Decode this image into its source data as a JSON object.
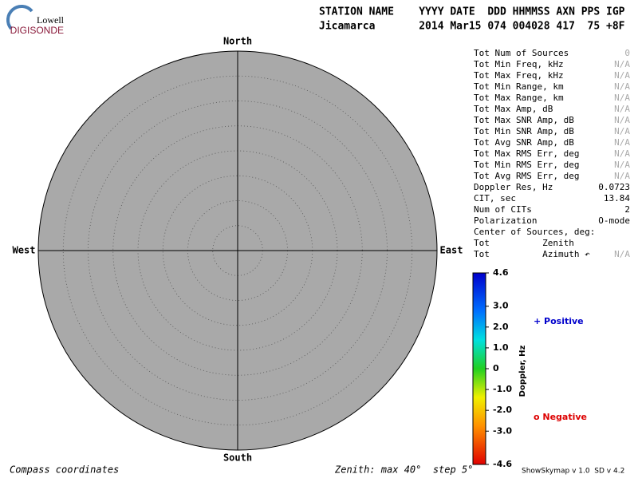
{
  "logo": {
    "top": "Lowell",
    "bottom": "DIGISONDE"
  },
  "header": {
    "line1": "STATION NAME    YYYY DATE  DDD HHMMSS AXN PPS IGP",
    "line2": "Jicamarca       2014 Mar15 074 004028 417  75 +8F"
  },
  "compass": {
    "north": "North",
    "south": "South",
    "west": "West",
    "east": "East"
  },
  "table": {
    "rows": [
      [
        "Tot Num of Sources",
        "0"
      ],
      [
        "Tot Min Freq, kHz",
        "N/A"
      ],
      [
        "Tot Max Freq, kHz",
        "N/A"
      ],
      [
        "Tot Min Range, km",
        "N/A"
      ],
      [
        "Tot Max Range, km",
        "N/A"
      ],
      [
        "Tot Max Amp, dB",
        "N/A"
      ],
      [
        "Tot Max SNR Amp, dB",
        "N/A"
      ],
      [
        "Tot Min SNR Amp, dB",
        "N/A"
      ],
      [
        "Tot Avg SNR Amp, dB",
        "N/A"
      ],
      [
        "Tot Max RMS Err, deg",
        "N/A"
      ],
      [
        "Tot Min RMS Err, deg",
        "N/A"
      ],
      [
        "Tot Avg RMS Err, deg",
        "N/A"
      ],
      [
        "Doppler Res, Hz",
        "0.0723"
      ],
      [
        "CIT, sec",
        "13.84"
      ],
      [
        "Num of CITs",
        "2"
      ],
      [
        "Polarization",
        "O-mode"
      ],
      [
        "Center of Sources, deg:"
      ],
      [
        "Tot          Zenith"
      ],
      [
        "Tot          Azimuth ↶",
        "N/A"
      ]
    ]
  },
  "colorbar": {
    "label": "Doppler, Hz",
    "ticks": [
      4.6,
      {
        "value": 3,
        "label": "3.0"
      },
      {
        "value": 2,
        "label": "2.0"
      },
      {
        "value": 1,
        "label": "1.0"
      },
      0,
      {
        "value": -1,
        "label": "-1.0"
      },
      {
        "value": -2,
        "label": "-2.0"
      },
      {
        "value": -3,
        "label": "-3.0"
      },
      -4.6
    ]
  },
  "legend": {
    "positive": "+ Positive",
    "negative": "o Negative"
  },
  "footer": {
    "left": "Compass coordinates",
    "middle": "Zenith: max 40°  step 5°",
    "right": "ShowSkymap v 1.0  SD v 4.2"
  }
}
